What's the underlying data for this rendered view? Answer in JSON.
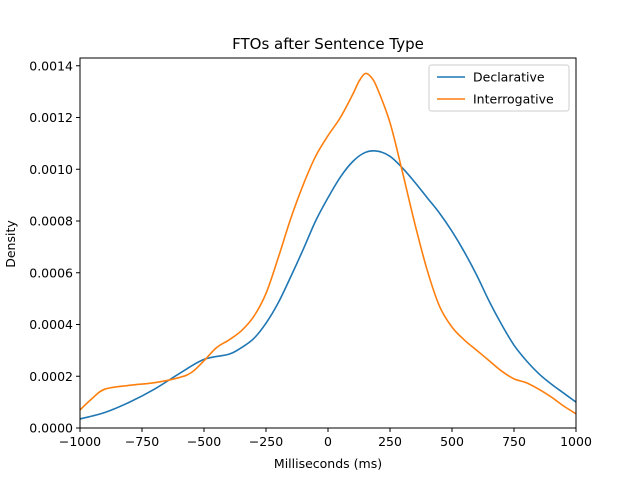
{
  "chart_data": {
    "type": "line",
    "title": "FTOs after Sentence Type",
    "xlabel": "Milliseconds (ms)",
    "ylabel": "Density",
    "xlim": [
      -1000,
      1000
    ],
    "ylim": [
      0,
      0.00143
    ],
    "xticks": [
      -1000,
      -750,
      -500,
      -250,
      0,
      250,
      500,
      750,
      1000
    ],
    "xtick_labels": [
      "−1000",
      "−750",
      "−500",
      "−250",
      "0",
      "250",
      "500",
      "750",
      "1000"
    ],
    "yticks": [
      0,
      0.0002,
      0.0004,
      0.0006,
      0.0008,
      0.001,
      0.0012,
      0.0014
    ],
    "ytick_labels": [
      "0.0000",
      "0.0002",
      "0.0004",
      "0.0006",
      "0.0008",
      "0.0010",
      "0.0012",
      "0.0014"
    ],
    "grid": false,
    "legend_position": "top-right",
    "series": [
      {
        "name": "Declarative",
        "color": "#1f77b4",
        "x": [
          -1000,
          -900,
          -800,
          -700,
          -600,
          -500,
          -400,
          -350,
          -300,
          -250,
          -200,
          -150,
          -100,
          -50,
          0,
          50,
          100,
          150,
          200,
          250,
          300,
          350,
          400,
          450,
          500,
          550,
          600,
          650,
          700,
          750,
          800,
          850,
          900,
          950,
          1000
        ],
        "y": [
          3.5e-05,
          6e-05,
          0.0001,
          0.00015,
          0.00021,
          0.000265,
          0.000285,
          0.00031,
          0.000345,
          0.000405,
          0.000485,
          0.000585,
          0.00069,
          0.0008,
          0.00089,
          0.00097,
          0.00103,
          0.001065,
          0.00107,
          0.00105,
          0.001005,
          0.00095,
          0.00089,
          0.00083,
          0.00076,
          0.00068,
          0.00059,
          0.00049,
          0.0004,
          0.00032,
          0.00026,
          0.00021,
          0.00017,
          0.000135,
          0.0001
        ]
      },
      {
        "name": "Interrogative",
        "color": "#ff7f0e",
        "x": [
          -1000,
          -950,
          -900,
          -800,
          -700,
          -600,
          -550,
          -500,
          -450,
          -400,
          -350,
          -300,
          -250,
          -200,
          -150,
          -100,
          -50,
          0,
          50,
          100,
          125,
          150,
          175,
          200,
          250,
          300,
          350,
          400,
          450,
          500,
          550,
          600,
          650,
          700,
          750,
          800,
          850,
          900,
          950,
          1000
        ],
        "y": [
          7e-05,
          0.000115,
          0.00015,
          0.000165,
          0.000175,
          0.000195,
          0.000215,
          0.00026,
          0.00031,
          0.00034,
          0.000375,
          0.00043,
          0.00052,
          0.00066,
          0.00081,
          0.00094,
          0.00105,
          0.00113,
          0.0012,
          0.00129,
          0.00134,
          0.00137,
          0.001355,
          0.00131,
          0.00118,
          0.00099,
          0.00079,
          0.00061,
          0.00047,
          0.00039,
          0.00034,
          0.0003,
          0.00026,
          0.00022,
          0.00019,
          0.000175,
          0.00015,
          0.00012,
          8.5e-05,
          5.5e-05
        ]
      }
    ]
  }
}
